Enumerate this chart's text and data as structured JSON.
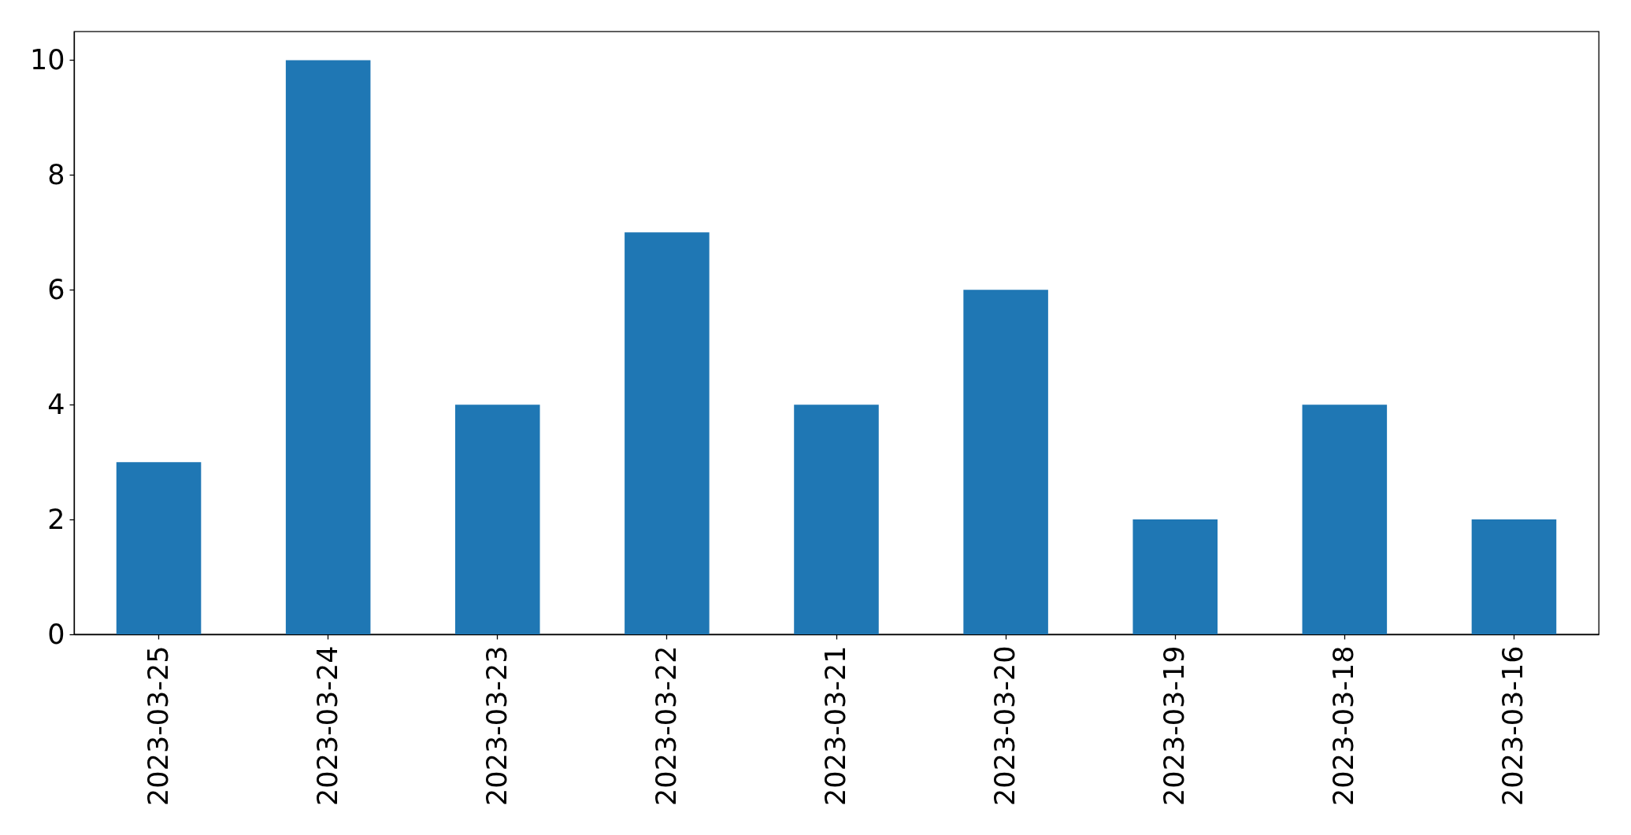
{
  "chart_data": {
    "type": "bar",
    "categories": [
      "2023-03-25",
      "2023-03-24",
      "2023-03-23",
      "2023-03-22",
      "2023-03-21",
      "2023-03-20",
      "2023-03-19",
      "2023-03-18",
      "2023-03-16"
    ],
    "values": [
      3,
      10,
      4,
      7,
      4,
      6,
      2,
      4,
      2
    ],
    "color": "#1f77b4",
    "ylim": [
      0,
      10.5
    ],
    "yticks": [
      0,
      2,
      4,
      6,
      8,
      10
    ]
  }
}
